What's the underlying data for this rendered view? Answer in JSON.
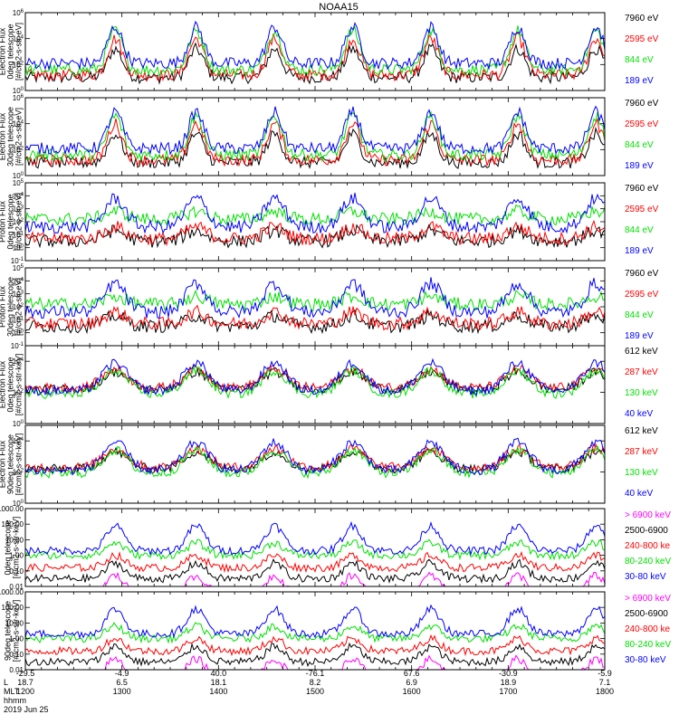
{
  "title": "NOAA15",
  "colors": {
    "blue": "#0000ff",
    "red": "#ff0000",
    "green": "#00e000",
    "black": "#000000",
    "magenta": "#ff00ff"
  },
  "chart_data": [
    {
      "type": "line",
      "ylabel": [
        "TED",
        "Electron Flux",
        "0deg telescope",
        "[#/cm2-s-str-eV]"
      ],
      "yscale": "log",
      "ylim": [
        1,
        1000000
      ],
      "yticks": [
        {
          "v": 1,
          "label": "10^0"
        },
        {
          "v": 100,
          "label": "10^2"
        },
        {
          "v": 10000,
          "label": "10^4"
        },
        {
          "v": 1000000,
          "label": "10^6"
        }
      ],
      "series": [
        {
          "name": "7960 eV",
          "color": "#000000"
        },
        {
          "name": "2595 eV",
          "color": "#ff0000"
        },
        {
          "name": "844 eV",
          "color": "#00e000"
        },
        {
          "name": "189 eV",
          "color": "#0000ff"
        }
      ]
    },
    {
      "type": "line",
      "ylabel": [
        "TED",
        "Electron Flux",
        "30deg telescope",
        "[#/cm2-s-str-eV]"
      ],
      "yscale": "log",
      "ylim": [
        1,
        1000000
      ],
      "yticks": [
        {
          "v": 1,
          "label": "10^0"
        },
        {
          "v": 100,
          "label": "10^2"
        },
        {
          "v": 10000,
          "label": "10^4"
        },
        {
          "v": 1000000,
          "label": "10^6"
        }
      ],
      "series": [
        {
          "name": "7960 eV",
          "color": "#000000"
        },
        {
          "name": "2595 eV",
          "color": "#ff0000"
        },
        {
          "name": "844 eV",
          "color": "#00e000"
        },
        {
          "name": "189 eV",
          "color": "#0000ff"
        }
      ]
    },
    {
      "type": "line",
      "ylabel": [
        "TED",
        "Proton Flux",
        "0deg telescope",
        "[#/cm2-s-str-eV]"
      ],
      "yscale": "log",
      "ylim": [
        0.1,
        100000
      ],
      "yticks": [
        {
          "v": 0.1,
          "label": "10^-1"
        },
        {
          "v": 1,
          "label": "10^0"
        },
        {
          "v": 10,
          "label": "10^1"
        },
        {
          "v": 100,
          "label": "10^2"
        },
        {
          "v": 1000,
          "label": "10^3"
        },
        {
          "v": 10000,
          "label": "10^4"
        },
        {
          "v": 100000,
          "label": "10^5"
        }
      ],
      "series": [
        {
          "name": "7960 eV",
          "color": "#000000"
        },
        {
          "name": "2595 eV",
          "color": "#ff0000"
        },
        {
          "name": "844 eV",
          "color": "#00e000"
        },
        {
          "name": "189 eV",
          "color": "#0000ff"
        }
      ]
    },
    {
      "type": "line",
      "ylabel": [
        "TED",
        "Proton Flux",
        "30deg telescope",
        "[#/cm2-s-str-eV]"
      ],
      "yscale": "log",
      "ylim": [
        0.1,
        100000
      ],
      "yticks": [
        {
          "v": 0.1,
          "label": "10^-1"
        },
        {
          "v": 1,
          "label": "10^0"
        },
        {
          "v": 10,
          "label": "10^1"
        },
        {
          "v": 100,
          "label": "10^2"
        },
        {
          "v": 1000,
          "label": "10^3"
        },
        {
          "v": 10000,
          "label": "10^4"
        },
        {
          "v": 100000,
          "label": "10^5"
        }
      ],
      "series": [
        {
          "name": "7960 eV",
          "color": "#000000"
        },
        {
          "name": "2595 eV",
          "color": "#ff0000"
        },
        {
          "name": "844 eV",
          "color": "#00e000"
        },
        {
          "name": "189 eV",
          "color": "#0000ff"
        }
      ]
    },
    {
      "type": "line",
      "ylabel": [
        "MEPED",
        "Electron Flux",
        "0deg telescope",
        "[#/cm2-s-str-keV]"
      ],
      "yscale": "log",
      "ylim": [
        1,
        100000
      ],
      "yticks": [
        {
          "v": 1,
          "label": "10^0"
        },
        {
          "v": 100,
          "label": "10^2"
        },
        {
          "v": 10000,
          "label": "10^4"
        }
      ],
      "series": [
        {
          "name": "612 keV",
          "color": "#000000"
        },
        {
          "name": "287 keV",
          "color": "#ff0000"
        },
        {
          "name": "130 keV",
          "color": "#00e000"
        },
        {
          "name": "40 keV",
          "color": "#0000ff"
        }
      ]
    },
    {
      "type": "line",
      "ylabel": [
        "MEPED",
        "Electron Flux",
        "90deg telescope",
        "[#/cm2-s-str-keV]"
      ],
      "yscale": "log",
      "ylim": [
        1,
        100000
      ],
      "yticks": [
        {
          "v": 1,
          "label": "10^0"
        },
        {
          "v": 100,
          "label": "10^2"
        },
        {
          "v": 10000,
          "label": "10^4"
        }
      ],
      "series": [
        {
          "name": "612 keV",
          "color": "#000000"
        },
        {
          "name": "287 keV",
          "color": "#ff0000"
        },
        {
          "name": "130 keV",
          "color": "#00e000"
        },
        {
          "name": "40 keV",
          "color": "#0000ff"
        }
      ]
    },
    {
      "type": "line",
      "ylabel": [
        "0deg telescope",
        "[#/cm2-s-str-keV]"
      ],
      "yscale": "log",
      "ylim": [
        0.01,
        1000
      ],
      "yticks": [
        {
          "v": 0.01,
          "label": "0.01"
        },
        {
          "v": 0.1,
          "label": "0.10"
        },
        {
          "v": 1,
          "label": "1.00"
        },
        {
          "v": 10,
          "label": "10.00"
        },
        {
          "v": 100,
          "label": "100.00"
        },
        {
          "v": 1000,
          "label": "1000.00"
        }
      ],
      "series": [
        {
          "name": "> 6900 keV",
          "color": "#ff00ff"
        },
        {
          "name": "2500-6900",
          "color": "#000000"
        },
        {
          "name": "240-800 ke",
          "color": "#ff0000"
        },
        {
          "name": "80-240 keV",
          "color": "#00e000"
        },
        {
          "name": "30-80 keV",
          "color": "#0000ff"
        }
      ]
    },
    {
      "type": "line",
      "ylabel": [
        "90deg telescope",
        "[#/cm2-s-str-keV]"
      ],
      "yscale": "log",
      "ylim": [
        0.01,
        1000
      ],
      "yticks": [
        {
          "v": 0.01,
          "label": "0.01"
        },
        {
          "v": 0.1,
          "label": "0.10"
        },
        {
          "v": 1,
          "label": "1.00"
        },
        {
          "v": 10,
          "label": "10.00"
        },
        {
          "v": 100,
          "label": "100.00"
        },
        {
          "v": 1000,
          "label": "1000.00"
        }
      ],
      "series": [
        {
          "name": "> 6900 keV",
          "color": "#ff00ff"
        },
        {
          "name": "2500-6900",
          "color": "#000000"
        },
        {
          "name": "240-800 ke",
          "color": "#ff0000"
        },
        {
          "name": "80-240 keV",
          "color": "#00e000"
        },
        {
          "name": "30-80 keV",
          "color": "#0000ff"
        }
      ]
    }
  ],
  "xaxis": {
    "row_labels": [
      "L",
      "MLT",
      "hhmm"
    ],
    "date": "2019 Jun 25",
    "lat": [
      "-29.5",
      "-4.9",
      "40.0",
      "-76.1",
      "67.6",
      "-30.9",
      "-5.9"
    ],
    "l": [
      "18.7",
      "6.5",
      "18.1",
      "8.2",
      "6.9",
      "18.9",
      "7.1"
    ],
    "mlt": [
      "1200",
      "1300",
      "1400",
      "1500",
      "1600",
      "1700",
      "1800"
    ]
  }
}
